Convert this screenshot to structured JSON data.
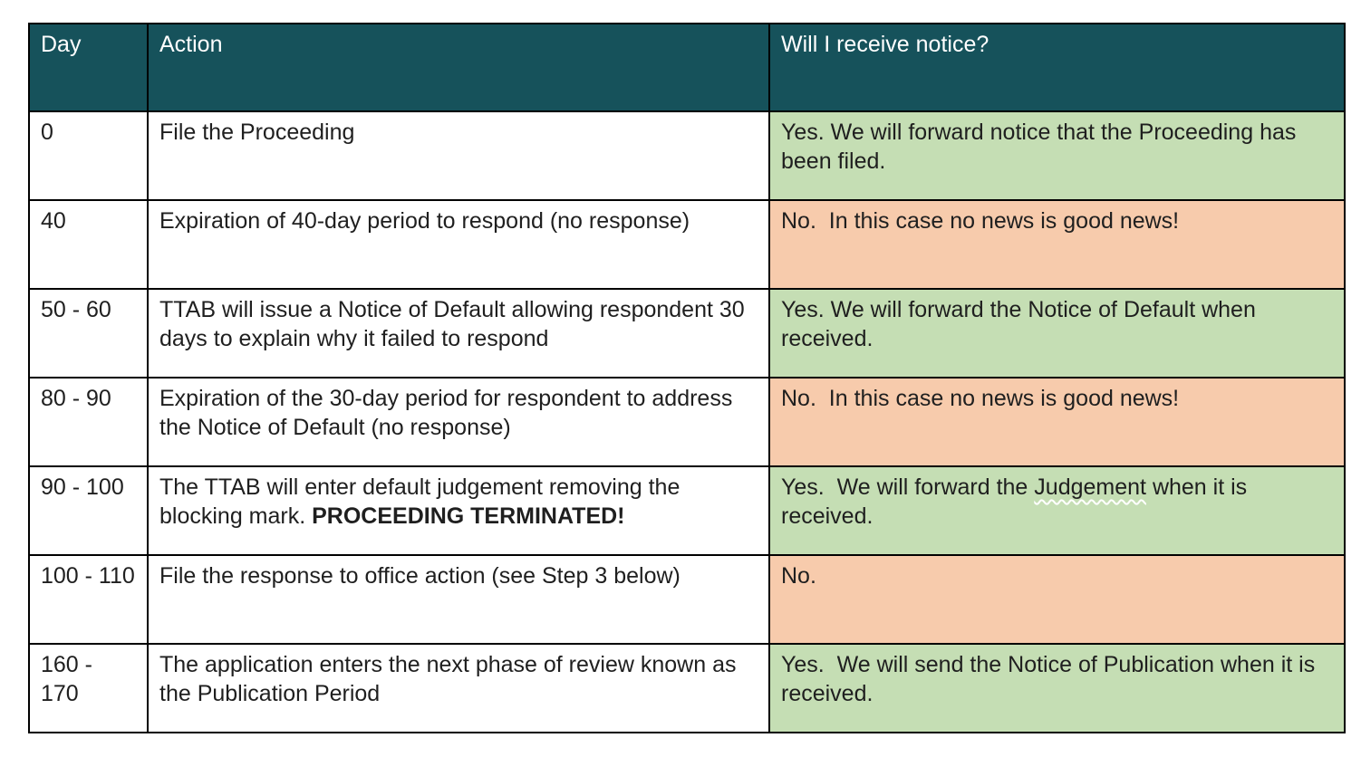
{
  "colors": {
    "header_bg": "#16525B",
    "header_text": "#ffffff",
    "yes_bg": "#C5DEB4",
    "no_bg": "#F7CBAC",
    "border": "#000000",
    "body_text": "#1f1f1f"
  },
  "table": {
    "headers": [
      "Day",
      "Action",
      "Will I receive notice?"
    ],
    "rows": [
      {
        "day": "0",
        "action": "File the Proceeding",
        "notice": "Yes. We will forward notice that the Proceeding has been filed.",
        "notice_type": "yes"
      },
      {
        "day": "40",
        "action": "Expiration of 40-day period to respond (no response)",
        "notice": "No.  In this case no news is good news!",
        "notice_type": "no"
      },
      {
        "day": "50 - 60",
        "action": "TTAB will issue a Notice of Default allowing respondent 30 days to explain why it failed to respond",
        "notice": "Yes. We will forward the Notice of Default when received.",
        "notice_type": "yes"
      },
      {
        "day": "80 - 90",
        "action": "Expiration of the 30-day period for respondent to address the Notice of Default (no response)",
        "notice": "No.  In this case no news is good news!",
        "notice_type": "no"
      },
      {
        "day": "90 - 100",
        "action_pre": "The TTAB will enter default judgement removing the blocking mark. ",
        "action_bold": "PROCEEDING TERMINATED!",
        "notice_pre": "Yes.  We will forward the ",
        "notice_wavy": "Judgement",
        "notice_post": " when it is received.",
        "notice_type": "yes"
      },
      {
        "day": "100 - 110",
        "action": "File the response to office action (see Step 3 below)",
        "notice": "No.",
        "notice_type": "no"
      },
      {
        "day": "160 - 170",
        "action": "The application enters the next phase of review known as the Publication Period",
        "notice": "Yes.  We will send the Notice of Publication when it is received.",
        "notice_type": "yes"
      }
    ]
  }
}
